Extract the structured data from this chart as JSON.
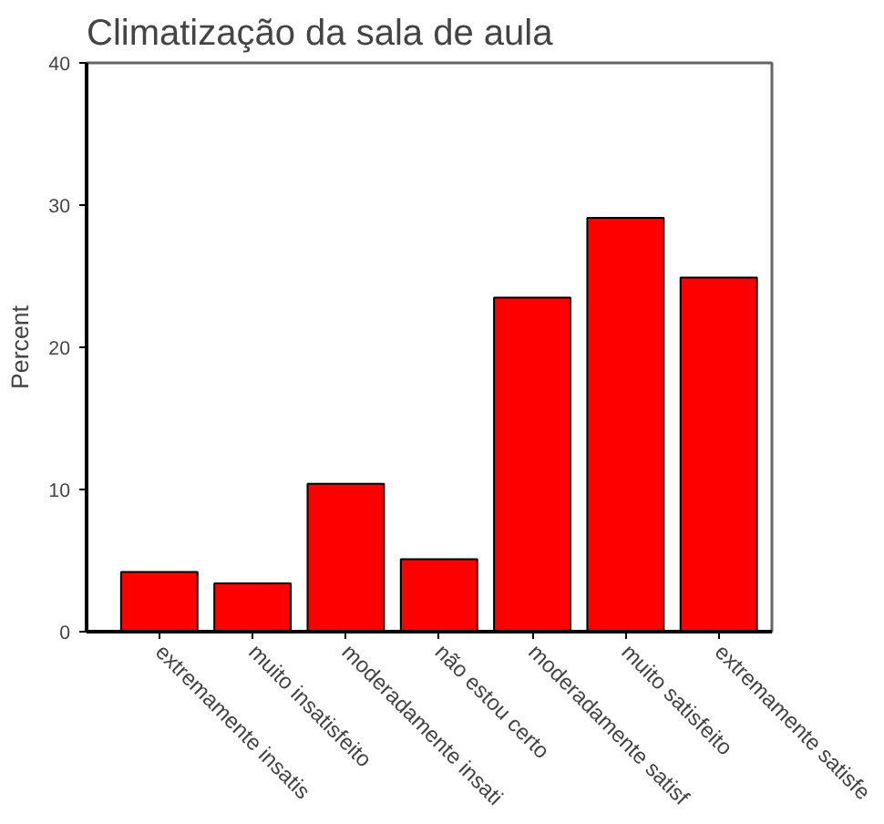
{
  "chart_data": {
    "type": "bar",
    "title": "Climatização da sala de aula",
    "ylabel": "Percent",
    "categories": [
      "extremamente insatis",
      "muito insatisfeito",
      "moderadamente insati",
      "não estou certo",
      "moderadamente satisf",
      "muito satisfeito",
      "extremamente satisfe"
    ],
    "values": [
      4.2,
      3.4,
      10.4,
      5.1,
      23.5,
      29.1,
      24.9
    ],
    "color": "#ff0000",
    "ylim": [
      0,
      40
    ],
    "yticks": [
      0,
      10,
      20,
      30,
      40
    ],
    "grid": false
  }
}
